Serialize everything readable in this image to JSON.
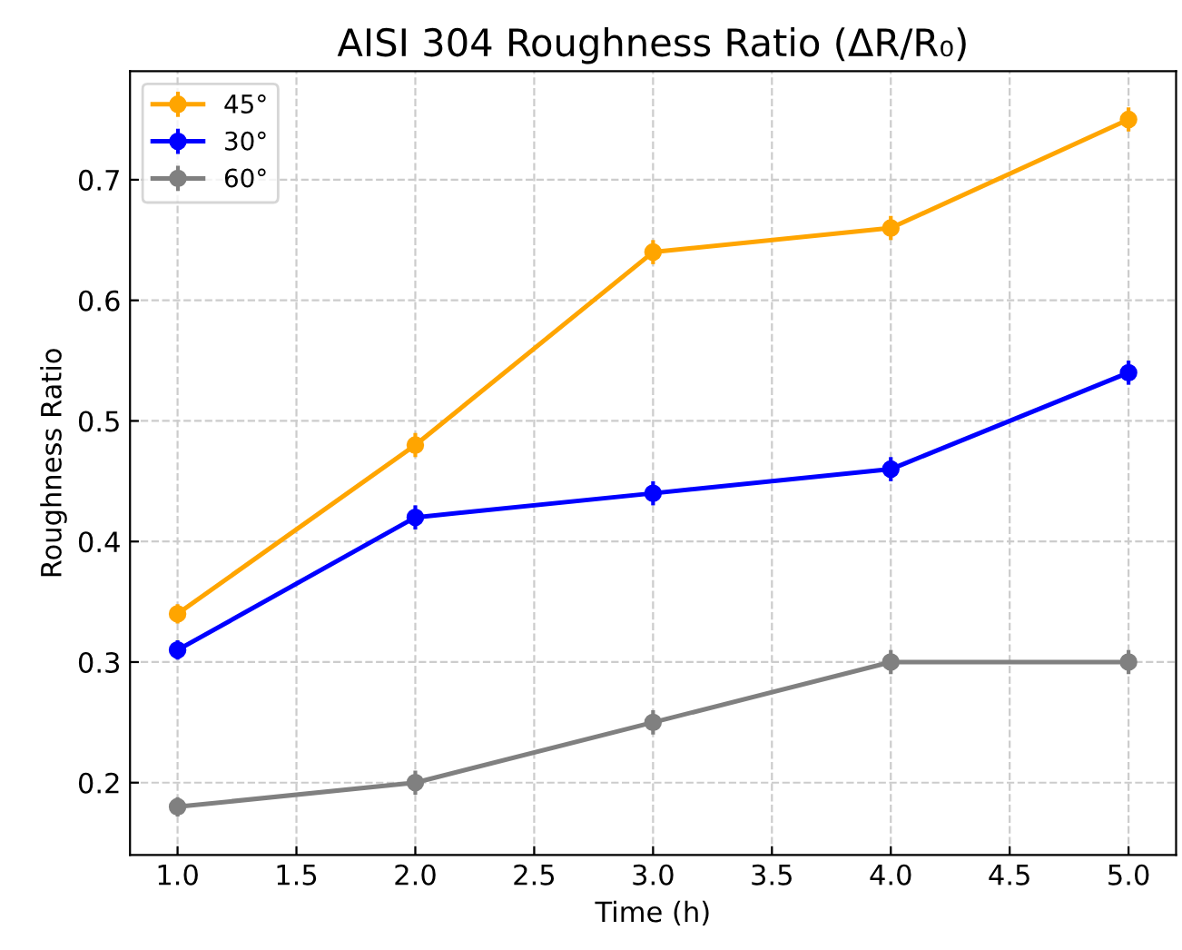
{
  "chart_data": {
    "type": "line",
    "title": "AISI 304 Roughness Ratio (ΔR/R₀)",
    "xlabel": "Time (h)",
    "ylabel": "Roughness Ratio",
    "x": [
      1.0,
      2.0,
      3.0,
      4.0,
      5.0
    ],
    "series": [
      {
        "name": "45°",
        "color": "#ffa500",
        "values": [
          0.34,
          0.48,
          0.64,
          0.66,
          0.75
        ],
        "errors": [
          0.008,
          0.01,
          0.01,
          0.01,
          0.01
        ]
      },
      {
        "name": "30°",
        "color": "#0000ff",
        "values": [
          0.31,
          0.42,
          0.44,
          0.46,
          0.54
        ],
        "errors": [
          0.008,
          0.01,
          0.01,
          0.01,
          0.01
        ]
      },
      {
        "name": "60°",
        "color": "#808080",
        "values": [
          0.18,
          0.2,
          0.25,
          0.3,
          0.3
        ],
        "errors": [
          0.008,
          0.01,
          0.01,
          0.01,
          0.01
        ]
      }
    ],
    "xlim": [
      0.8,
      5.2
    ],
    "ylim": [
      0.14,
      0.79
    ],
    "xticks": [
      {
        "value": 1,
        "label": "1.0"
      },
      1.5,
      {
        "value": 2,
        "label": "2.0"
      },
      2.5,
      {
        "value": 3,
        "label": "3.0"
      },
      3.5,
      {
        "value": 4,
        "label": "4.0"
      },
      4.5,
      {
        "value": 5,
        "label": "5.0"
      }
    ],
    "yticks": [
      0.2,
      0.3,
      0.4,
      0.5,
      0.6,
      0.7
    ],
    "grid": true,
    "legend": "top left",
    "marker": "circle",
    "line_style": "solid"
  }
}
